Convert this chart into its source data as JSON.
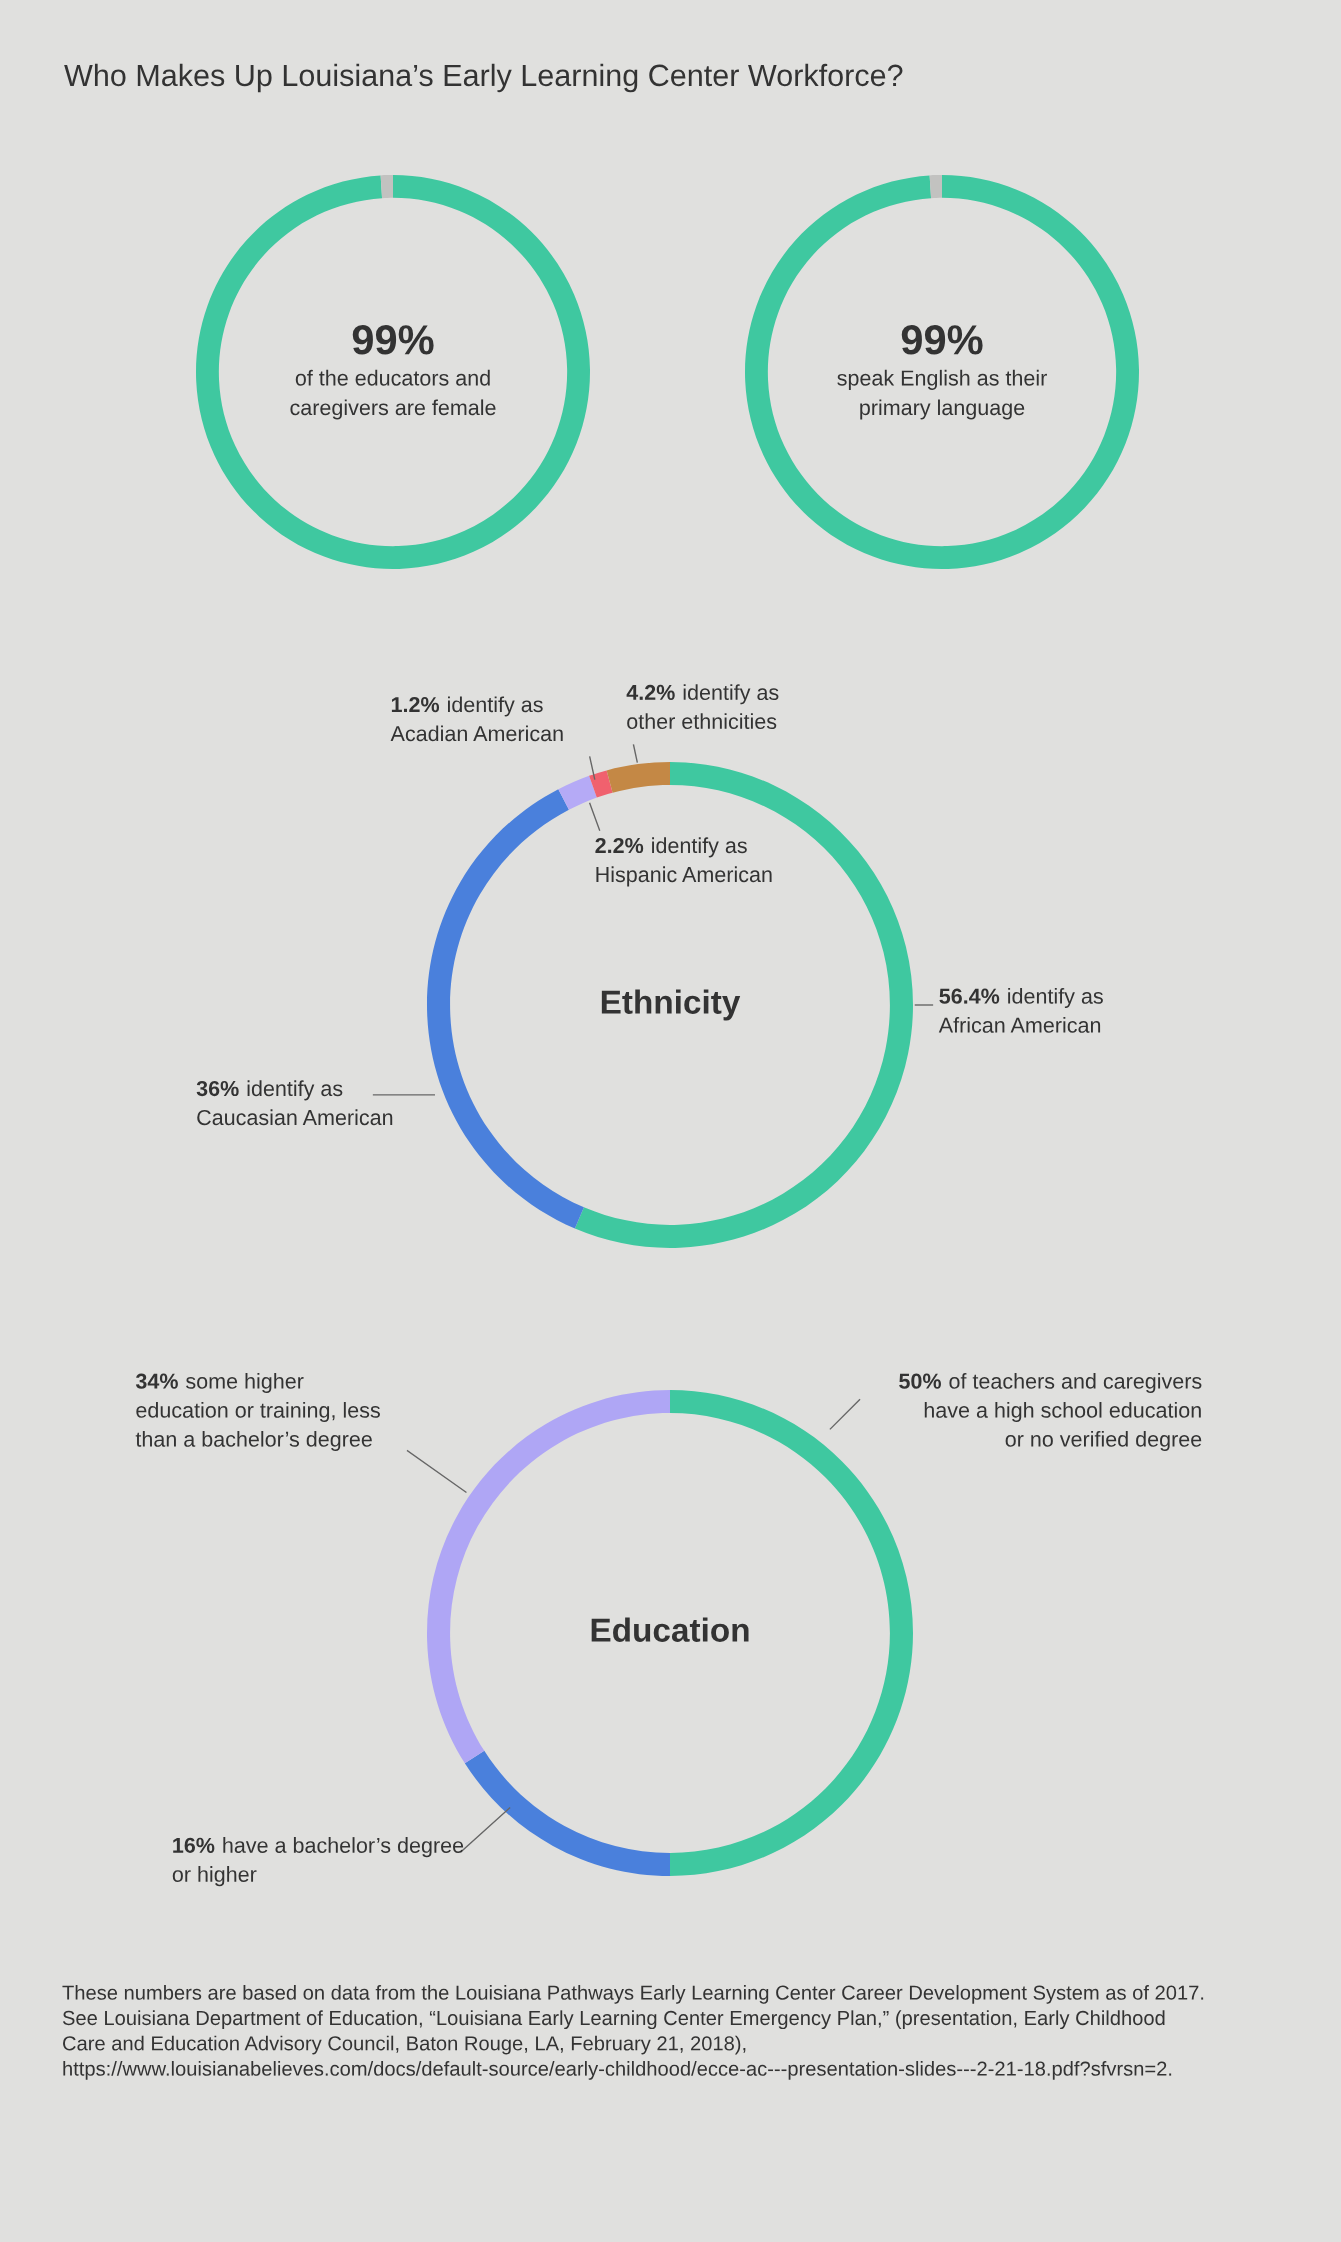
{
  "chart_data": [
    {
      "type": "donut",
      "title": "Who Makes Up Louisiana’s Early Learning Center Workforce?",
      "categories": [
        "of the educators and\ncaregivers are female",
        null
      ],
      "values": [
        99,
        1
      ],
      "colors": [
        "#3fc8a0",
        "#c2c2c0"
      ],
      "value_labels": [
        "99%",
        null
      ]
    },
    {
      "type": "donut",
      "categories": [
        "speak English as their\nprimary language",
        null
      ],
      "values": [
        99,
        1
      ],
      "colors": [
        "#3fc8a0",
        "#c2c2c0"
      ],
      "value_labels": [
        "99%",
        null
      ]
    },
    {
      "type": "donut",
      "title": "Ethnicity",
      "categories": [
        "identify as\nAfrican American",
        "identify as\nCaucasian American",
        "identify as\nHispanic American",
        "identify as\nAcadian American",
        "identify as\nother ethnicities"
      ],
      "values": [
        56.4,
        36,
        2.2,
        1.2,
        4.2
      ],
      "colors": [
        "#3fc8a0",
        "#4a80dc",
        "#b5aaf6",
        "#f0616e",
        "#c48845"
      ],
      "value_labels": [
        "56.4%",
        "36%",
        "2.2%",
        "1.2%",
        "4.2%"
      ]
    },
    {
      "type": "donut",
      "title": "Education",
      "categories": [
        "of teachers and caregivers\nhave a high school education\nor no verified degree",
        "have a bachelor’s degree\nor higher",
        "some higher\neducation or training, less\nthan a bachelor’s degree"
      ],
      "values": [
        50,
        16,
        34
      ],
      "colors": [
        "#3fc8a0",
        "#4a80dc",
        "#afa6f5"
      ],
      "value_labels": [
        "50%",
        "16%",
        "34%"
      ],
      "annotations": [
        "These numbers are based on data from the Louisiana Pathways Early Learning Center Career Development System as of 2017. See Louisiana Department of Education, “Louisiana Early Learning Center Emergency Plan,” (presentation, Early Childhood Care and Education Advisory Council, Baton Rouge, LA, February 21, 2018), https://www.louisianabelieves.com/docs/default-source/early-childhood/ecce-ac---presentation-slides---2-21-18.pdf?sfvrsn=2."
      ]
    }
  ]
}
